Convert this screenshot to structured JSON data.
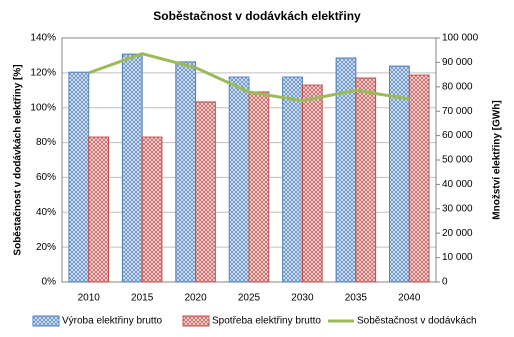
{
  "chart_data": {
    "type": "bar-line",
    "title": "Soběstačnost v dodávkách elektřiny",
    "y_label": "Soběstačnost v dodávkách elektřiny [%]",
    "y2_label": "Množství elektřiny [GWh]",
    "categories": [
      "2010",
      "2015",
      "2020",
      "2025",
      "2030",
      "2035",
      "2040"
    ],
    "series": [
      {
        "name": "Výroba elektřiny brutto",
        "type": "bar",
        "axis": "y2",
        "color": "#4f81bd",
        "values": [
          86000,
          93400,
          90200,
          84000,
          84000,
          91800,
          88500
        ]
      },
      {
        "name": "Spotřeba elektřiny brutto",
        "type": "bar",
        "axis": "y2",
        "color": "#c0504d",
        "values": [
          59400,
          59400,
          73800,
          77900,
          80700,
          83600,
          84800
        ]
      },
      {
        "name": "Soběstačnost v dodávkách",
        "type": "line",
        "axis": "y",
        "color": "#9bbb59",
        "values": [
          120,
          131,
          123,
          109,
          104,
          110,
          105
        ]
      }
    ],
    "ylim": [
      0,
      140
    ],
    "yticks": [
      {
        "value": 0,
        "label": "0%"
      },
      {
        "value": 20,
        "label": "20%"
      },
      {
        "value": 40,
        "label": "40%"
      },
      {
        "value": 60,
        "label": "60%"
      },
      {
        "value": 80,
        "label": "80%"
      },
      {
        "value": 100,
        "label": "100%"
      },
      {
        "value": 120,
        "label": "120%"
      },
      {
        "value": 140,
        "label": "140%"
      }
    ],
    "y2lim": [
      0,
      100000
    ],
    "y2ticks": [
      0,
      {
        "value": 10000,
        "label": "10 000"
      },
      {
        "value": 20000,
        "label": "20 000"
      },
      {
        "value": 30000,
        "label": "30 000"
      },
      {
        "value": 40000,
        "label": "40 000"
      },
      {
        "value": 50000,
        "label": "50 000"
      },
      {
        "value": 60000,
        "label": "60 000"
      },
      {
        "value": 70000,
        "label": "70 000"
      },
      {
        "value": 80000,
        "label": "80 000"
      },
      {
        "value": 90000,
        "label": "90 000"
      },
      {
        "value": 100000,
        "label": "100 000"
      }
    ],
    "grid": true
  }
}
